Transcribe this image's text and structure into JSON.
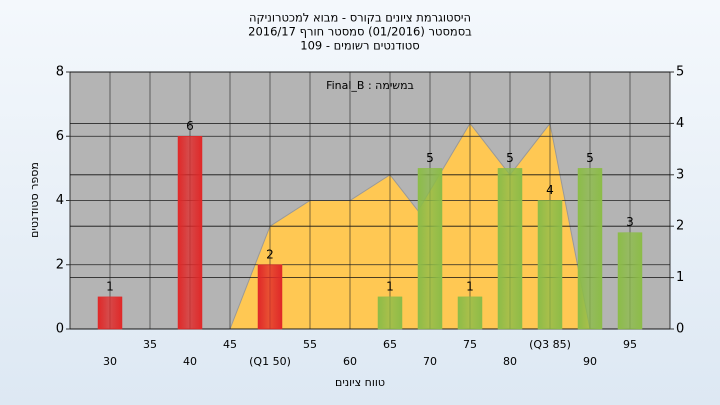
{
  "chart_data": {
    "type": "bar",
    "title": [
      "היסטוגרמת ציונים בקורס - מבוא למכטרוניקה",
      "בסמסטר  (01/2016)  סמסטר חורף 2016/17",
      "סטודנטים רשומים - 109"
    ],
    "annotation": "במשימה : Final_B",
    "y_label": "מספר סטודנטים",
    "x_label": "טווח ציונים",
    "xlim": [
      25,
      100
    ],
    "xticks": [
      30,
      35,
      40,
      45,
      {
        "value": 50,
        "label": "(Q1 50)"
      },
      55,
      60,
      65,
      70,
      75,
      80,
      {
        "value": 85,
        "label": "(Q3 85)"
      },
      90,
      95
    ],
    "ylim": [
      0,
      8
    ],
    "yticks": [
      0,
      2,
      4,
      6,
      8
    ],
    "y2lim": [
      0,
      5
    ],
    "y2ticks": [
      0,
      1,
      2,
      3,
      4,
      5
    ],
    "grid": true,
    "series": [
      {
        "type": "bar",
        "x": [
          30,
          35,
          40,
          45,
          50,
          55,
          60,
          65,
          70,
          75,
          80,
          85,
          90,
          95
        ],
        "values": [
          1,
          0,
          6,
          0,
          2,
          0,
          0,
          1,
          5,
          1,
          5,
          4,
          5,
          3
        ],
        "colors": [
          "#e02828",
          "#e02828",
          "#e02828",
          "#e02828",
          "#e02828",
          "#8cbc48",
          "#8cbc48",
          "#8cbc48",
          "#8cbc48",
          "#8cbc48",
          "#8cbc48",
          "#8cbc48",
          "#8cbc48",
          "#8cbc48"
        ]
      },
      {
        "type": "area",
        "axis": "y2",
        "color": "#ffc853",
        "x": [
          45,
          50,
          55,
          60,
          65,
          68.5,
          75,
          80,
          85,
          90
        ],
        "values": [
          0,
          2,
          2.5,
          2.5,
          3,
          2.3,
          4,
          3,
          4,
          0
        ]
      }
    ]
  }
}
